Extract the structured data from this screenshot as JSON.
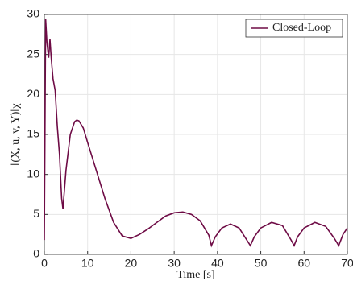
{
  "chart_data": {
    "type": "line",
    "xlabel": "Time [s]",
    "ylabel": "‖(X, u, v, Y)‖χ",
    "x": [
      0,
      0.3,
      0.6,
      1,
      1.3,
      1.6,
      2,
      2.5,
      3,
      3.5,
      4,
      4.3,
      5,
      6,
      7,
      7.5,
      8,
      9,
      10,
      12,
      14,
      16,
      18,
      20,
      22,
      24,
      26,
      28,
      30,
      32,
      34,
      36,
      38,
      38.6,
      39.5,
      41,
      43,
      45,
      47,
      47.6,
      48.5,
      50,
      52.5,
      55,
      57,
      57.7,
      58.5,
      60,
      62.5,
      65,
      67,
      68,
      69,
      70
    ],
    "series": [
      {
        "name": "Closed-Loop",
        "color": "#6e0b45",
        "values": [
          1.8,
          29.4,
          26.5,
          24.6,
          26.9,
          24.5,
          22,
          20.5,
          16,
          12.5,
          7,
          5.7,
          10.5,
          15,
          16.6,
          16.8,
          16.7,
          15.8,
          14,
          10.5,
          7,
          4,
          2.3,
          2,
          2.5,
          3.2,
          4,
          4.8,
          5.2,
          5.3,
          5,
          4.2,
          2.4,
          1.1,
          2.2,
          3.3,
          3.8,
          3.3,
          1.6,
          1.1,
          2.2,
          3.3,
          4,
          3.6,
          1.8,
          1.1,
          2.2,
          3.3,
          4,
          3.5,
          2,
          1.1,
          2.5,
          3.3
        ]
      }
    ],
    "xlim": [
      0,
      70
    ],
    "xticks": [
      0,
      10,
      20,
      30,
      40,
      50,
      60,
      70
    ],
    "ylim": [
      0,
      30
    ],
    "yticks": [
      0,
      5,
      10,
      15,
      20,
      25,
      30
    ],
    "grid": true,
    "legend": "upper-right"
  }
}
